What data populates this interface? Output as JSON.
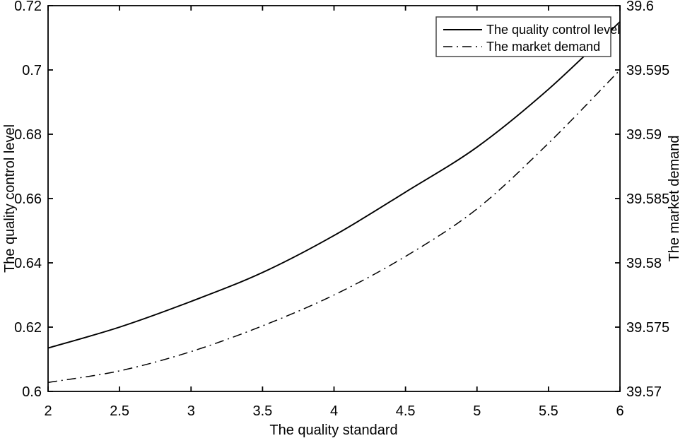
{
  "chart_data": {
    "type": "line",
    "title": "",
    "xlabel": "The quality standard",
    "ylabel_left": "The quality control level",
    "ylabel_right": "The market demand",
    "xlim": [
      2,
      6
    ],
    "ylim_left": [
      0.6,
      0.72
    ],
    "ylim_right": [
      39.57,
      39.6
    ],
    "x_ticks": [
      2,
      2.5,
      3,
      3.5,
      4,
      4.5,
      5,
      5.5,
      6
    ],
    "x_tick_labels": [
      "2",
      "2.5",
      "3",
      "3.5",
      "4",
      "4.5",
      "5",
      "5.5",
      "6"
    ],
    "left_y_ticks": [
      0.6,
      0.62,
      0.64,
      0.66,
      0.68,
      0.7,
      0.72
    ],
    "left_y_tick_labels": [
      "0.6",
      "0.62",
      "0.64",
      "0.66",
      "0.68",
      "0.7",
      "0.72"
    ],
    "right_y_ticks": [
      39.57,
      39.575,
      39.58,
      39.585,
      39.59,
      39.595,
      39.6
    ],
    "right_y_tick_labels": [
      "39.57",
      "39.575",
      "39.58",
      "39.585",
      "39.59",
      "39.595",
      "39.6"
    ],
    "x": [
      2,
      2.5,
      3,
      3.5,
      4,
      4.5,
      5,
      5.5,
      6
    ],
    "series": [
      {
        "name": "The quality control level",
        "axis": "left",
        "style": "solid",
        "values": [
          0.6135,
          0.62,
          0.628,
          0.637,
          0.6485,
          0.662,
          0.676,
          0.694,
          0.715
        ]
      },
      {
        "name": "The market demand",
        "axis": "right",
        "style": "dash-dot",
        "values": [
          39.5707,
          39.5716,
          39.5731,
          39.5751,
          39.5775,
          39.5805,
          39.5842,
          39.5893,
          39.595
        ]
      }
    ],
    "legend": {
      "position": "top-right",
      "entries": [
        "The quality control level",
        "The market demand"
      ]
    },
    "grid": false,
    "line_color": "#000000",
    "axis_color": "#000000",
    "background": "#ffffff"
  }
}
